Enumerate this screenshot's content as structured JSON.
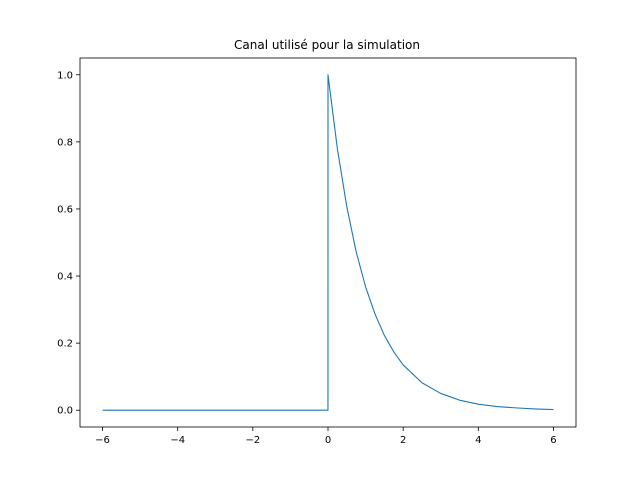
{
  "chart_data": {
    "type": "line",
    "title": "Canal utilisé pour la simulation",
    "xlabel": "",
    "ylabel": "",
    "xlim": [
      -6.6,
      6.6
    ],
    "ylim": [
      -0.05,
      1.05
    ],
    "x_ticks": [
      -6,
      -4,
      -2,
      0,
      2,
      4,
      6
    ],
    "x_tick_labels": [
      "−6",
      "−4",
      "−2",
      "0",
      "2",
      "4",
      "6"
    ],
    "y_ticks": [
      0.0,
      0.2,
      0.4,
      0.6,
      0.8,
      1.0
    ],
    "y_tick_labels": [
      "0.0",
      "0.2",
      "0.4",
      "0.6",
      "0.8",
      "1.0"
    ],
    "grid": false,
    "legend": "none",
    "line_color": "#1f77b4",
    "series": [
      {
        "x": [
          -6,
          -4,
          -2,
          -0.001,
          0,
          0.25,
          0.5,
          0.75,
          1,
          1.25,
          1.5,
          1.75,
          2,
          2.5,
          3,
          3.5,
          4,
          4.5,
          5,
          5.5,
          6
        ],
        "y": [
          0,
          0,
          0,
          0,
          1.0,
          0.779,
          0.607,
          0.472,
          0.368,
          0.287,
          0.223,
          0.174,
          0.135,
          0.082,
          0.05,
          0.03,
          0.018,
          0.011,
          0.007,
          0.004,
          0.002
        ]
      }
    ]
  }
}
